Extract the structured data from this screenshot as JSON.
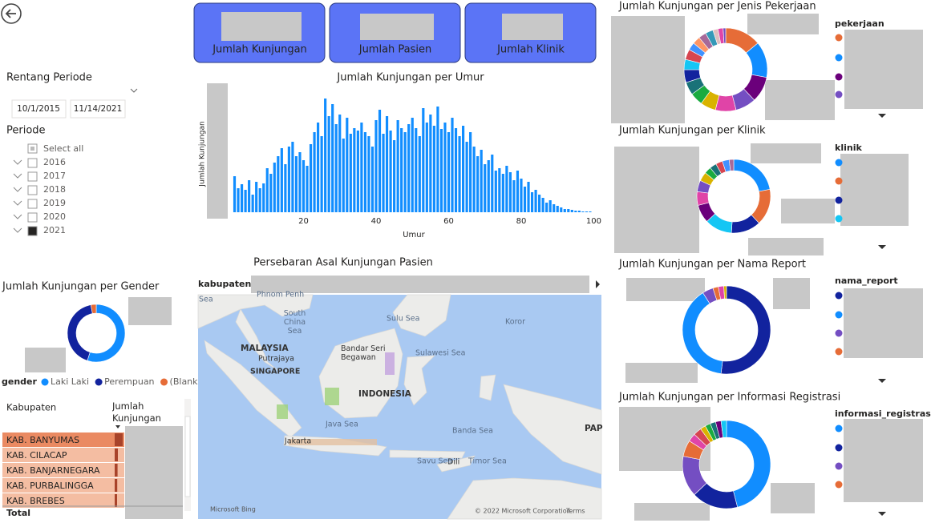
{
  "buttons": [
    "Jumlah Kunjungan",
    "Jumlah Pasien",
    "Jumlah Klinik"
  ],
  "filters": {
    "range_title": "Rentang Periode",
    "start_date": "10/1/2015",
    "end_date": "11/14/2021",
    "period_title": "Periode",
    "select_all": "Select all",
    "years": [
      "2016",
      "2017",
      "2018",
      "2019",
      "2020",
      "2021"
    ],
    "checked": [
      false,
      false,
      false,
      false,
      false,
      true
    ]
  },
  "age_chart": {
    "type": "bar",
    "title": "Jumlah Kunjungan per Umur",
    "x_label": "Umur",
    "y_label": "Jumlah Kunjungan",
    "color": "#118dff",
    "x": [
      1,
      2,
      3,
      4,
      5,
      6,
      7,
      8,
      9,
      10,
      11,
      12,
      13,
      14,
      15,
      16,
      17,
      18,
      19,
      20,
      21,
      22,
      23,
      24,
      25,
      26,
      27,
      28,
      29,
      30,
      31,
      32,
      33,
      34,
      35,
      36,
      37,
      38,
      39,
      40,
      41,
      42,
      43,
      44,
      45,
      46,
      47,
      48,
      49,
      50,
      51,
      52,
      53,
      54,
      55,
      56,
      57,
      58,
      59,
      60,
      61,
      62,
      63,
      64,
      65,
      66,
      67,
      68,
      69,
      70,
      71,
      72,
      73,
      74,
      75,
      76,
      77,
      78,
      79,
      80,
      81,
      82,
      83,
      84,
      85,
      86,
      87,
      88,
      89,
      90,
      91,
      92,
      93,
      94,
      95,
      96,
      97,
      98,
      99
    ],
    "values": [
      45,
      30,
      35,
      28,
      40,
      22,
      38,
      30,
      36,
      55,
      48,
      62,
      70,
      80,
      60,
      82,
      88,
      70,
      75,
      65,
      58,
      85,
      100,
      112,
      95,
      142,
      120,
      135,
      110,
      122,
      92,
      118,
      98,
      105,
      102,
      112,
      100,
      95,
      82,
      115,
      128,
      98,
      120,
      102,
      90,
      115,
      105,
      100,
      110,
      118,
      105,
      95,
      130,
      112,
      122,
      108,
      132,
      104,
      112,
      100,
      118,
      105,
      95,
      108,
      88,
      100,
      82,
      70,
      78,
      60,
      65,
      72,
      52,
      55,
      48,
      58,
      50,
      40,
      52,
      42,
      32,
      38,
      25,
      28,
      22,
      18,
      12,
      15,
      10,
      8,
      6,
      4,
      4,
      3,
      2,
      2,
      1,
      1,
      1
    ],
    "xlim": [
      0,
      101
    ],
    "xticks": [
      20,
      40,
      60,
      80,
      100
    ],
    "ylim": [
      0,
      150
    ]
  },
  "gender_chart": {
    "type": "donut",
    "title": "Jumlah Kunjungan per Gender",
    "legend_title": "gender",
    "series": [
      {
        "name": "Laki Laki",
        "color": "#118dff",
        "value": 55
      },
      {
        "name": "Perempuan",
        "color": "#12239e",
        "value": 42
      },
      {
        "name": "(Blank)",
        "color": "#e66c37",
        "value": 3
      }
    ]
  },
  "table": {
    "columns": [
      "Kabupaten",
      "Jumlah Kunjungan"
    ],
    "rows": [
      "KAB. BANYUMAS",
      "KAB. CILACAP",
      "KAB. BANJARNEGARA",
      "KAB. PURBALINGGA",
      "KAB. BREBES"
    ],
    "bar_values": [
      100,
      40,
      36,
      32,
      30
    ],
    "total": "Total"
  },
  "map": {
    "title": "Persebaran Asal Kunjungan Pasien",
    "filter_label": "kabupaten",
    "labels": [
      "Sea",
      "Phnom Penh",
      "South China Sea",
      "Sulu Sea",
      "Koror",
      "MALAYSIA",
      "Putrajaya",
      "Bandar Seri Begawan",
      "Sulawesi Sea",
      "SINGAPORE",
      "INDONESIA",
      "Java Sea",
      "Banda Sea",
      "Jakarta",
      "Dili",
      "Savu Sea",
      "Timor Sea",
      "PAP",
      "Microsoft Bing",
      "© 2022 Microsoft Corporation",
      "Terms"
    ]
  },
  "job_chart": {
    "type": "donut",
    "title": "Jumlah Kunjungan per Jenis Pekerjaan",
    "legend_title": "pekerjaan",
    "segments": [
      {
        "color": "#e66c37",
        "value": 14
      },
      {
        "color": "#118dff",
        "value": 14
      },
      {
        "color": "#6b007b",
        "value": 10
      },
      {
        "color": "#744ec2",
        "value": 8
      },
      {
        "color": "#e044a7",
        "value": 8
      },
      {
        "color": "#d9b300",
        "value": 6
      },
      {
        "color": "#1aab40",
        "value": 5
      },
      {
        "color": "#197278",
        "value": 5
      },
      {
        "color": "#12239e",
        "value": 5
      },
      {
        "color": "#15c6f4",
        "value": 4
      },
      {
        "color": "#d64550",
        "value": 4
      },
      {
        "color": "#4092ff",
        "value": 3
      },
      {
        "color": "#fe9666",
        "value": 3
      },
      {
        "color": "#a66999",
        "value": 3
      },
      {
        "color": "#3599b8",
        "value": 3
      },
      {
        "color": "#dfbfbf",
        "value": 2
      },
      {
        "color": "#e044a7",
        "value": 2
      },
      {
        "color": "#744ec2",
        "value": 1
      }
    ]
  },
  "clinic_chart": {
    "type": "donut",
    "title": "Jumlah Kunjungan per Klinik",
    "legend_title": "klinik",
    "segments": [
      {
        "color": "#118dff",
        "value": 22
      },
      {
        "color": "#e66c37",
        "value": 16
      },
      {
        "color": "#12239e",
        "value": 13
      },
      {
        "color": "#15c6f4",
        "value": 12
      },
      {
        "color": "#6b007b",
        "value": 8
      },
      {
        "color": "#e044a7",
        "value": 6
      },
      {
        "color": "#744ec2",
        "value": 5
      },
      {
        "color": "#d9b300",
        "value": 4
      },
      {
        "color": "#1aab40",
        "value": 3
      },
      {
        "color": "#197278",
        "value": 3
      },
      {
        "color": "#d64550",
        "value": 3
      },
      {
        "color": "#4092ff",
        "value": 3
      },
      {
        "color": "#a66999",
        "value": 2
      }
    ]
  },
  "report_chart": {
    "type": "donut",
    "title": "Jumlah Kunjungan per Nama Report",
    "legend_title": "nama_report",
    "segments": [
      {
        "color": "#12239e",
        "value": 52
      },
      {
        "color": "#118dff",
        "value": 39
      },
      {
        "color": "#744ec2",
        "value": 4
      },
      {
        "color": "#e66c37",
        "value": 2
      },
      {
        "color": "#e044a7",
        "value": 2
      },
      {
        "color": "#d9b300",
        "value": 1
      }
    ]
  },
  "registration_chart": {
    "type": "donut",
    "title": "Jumlah Kunjungan per Informasi Registrasi",
    "legend_title": "informasi_registrasi",
    "segments": [
      {
        "color": "#118dff",
        "value": 46
      },
      {
        "color": "#12239e",
        "value": 17
      },
      {
        "color": "#744ec2",
        "value": 15
      },
      {
        "color": "#e66c37",
        "value": 6
      },
      {
        "color": "#e044a7",
        "value": 3
      },
      {
        "color": "#d64550",
        "value": 3
      },
      {
        "color": "#d9b300",
        "value": 2
      },
      {
        "color": "#1aab40",
        "value": 2
      },
      {
        "color": "#197278",
        "value": 2
      },
      {
        "color": "#6b007b",
        "value": 2
      },
      {
        "color": "#15c6f4",
        "value": 2
      }
    ]
  }
}
